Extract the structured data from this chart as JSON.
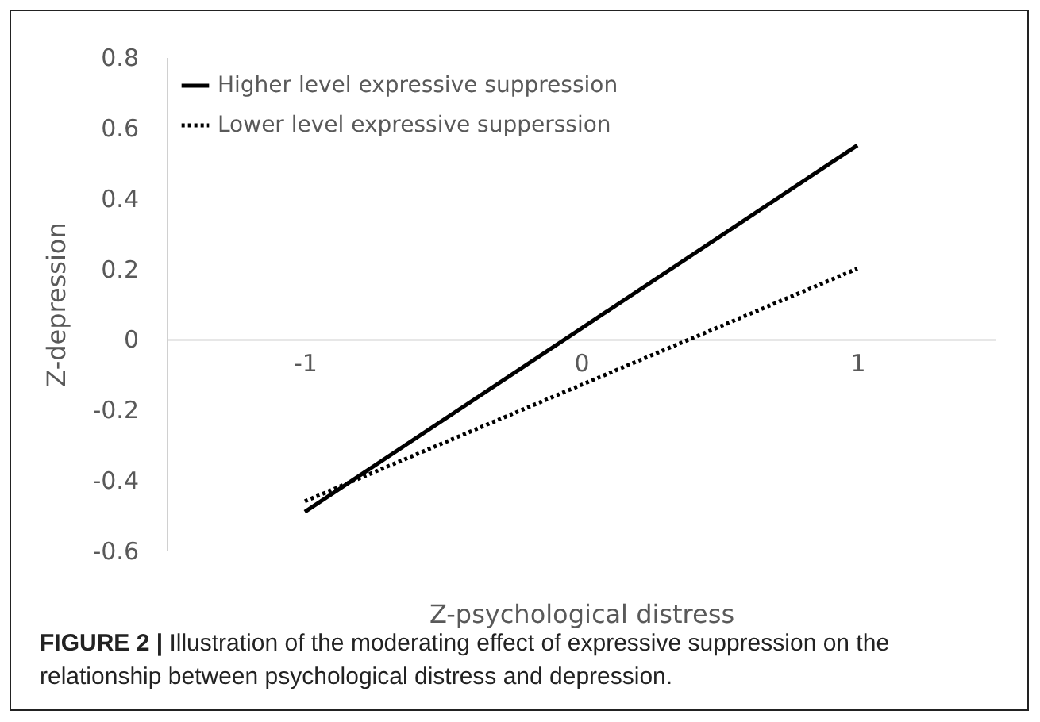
{
  "chart_data": {
    "type": "line",
    "xlabel": "Z-psychological distress",
    "ylabel": "Z-depression",
    "categories": [
      "-1",
      "0",
      "1"
    ],
    "series": [
      {
        "name": "Higher level expressive suppression",
        "color": "#000000",
        "line_style": "solid",
        "values": [
          -0.49,
          0.03,
          0.55
        ]
      },
      {
        "name": "Lower level expressive supperssion",
        "color": "#000000",
        "line_style": "dotted",
        "values": [
          -0.46,
          -0.13,
          0.2
        ]
      }
    ],
    "ylim": [
      -0.6,
      0.8
    ],
    "yticks": [
      -0.6,
      -0.4,
      -0.2,
      0,
      0.2,
      0.4,
      0.6,
      0.8
    ],
    "grid": false,
    "legend": "top left",
    "marker": "none",
    "annotations": [
      "FIGURE 2 | Illustration of the moderating effect of expressive suppression on the relationship between psychological distress and depression."
    ]
  }
}
